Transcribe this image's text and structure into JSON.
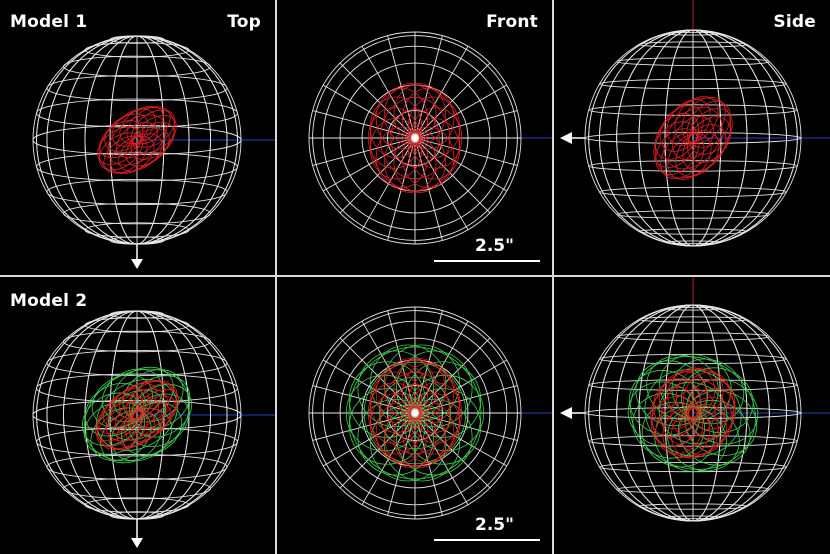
{
  "rows": [
    {
      "label": "Model 1",
      "panels": [
        {
          "view": "Top",
          "view_label": "Top",
          "scale_label": "",
          "arrow": "down",
          "shells": [
            {
              "color": "red",
              "tilt": -35,
              "rx": 0.16,
              "ry": 0.1
            }
          ]
        },
        {
          "view": "Front",
          "view_label": "Front",
          "scale_label": "2.5\"",
          "arrow": "",
          "shells": [
            {
              "color": "red",
              "tilt": 0,
              "rx": 0.17,
              "ry": 0.2
            }
          ]
        },
        {
          "view": "Side",
          "view_label": "Side",
          "scale_label": "",
          "arrow": "left",
          "shells": [
            {
              "color": "red",
              "tilt": 40,
              "rx": 0.12,
              "ry": 0.17
            }
          ]
        }
      ]
    },
    {
      "label": "Model 2",
      "panels": [
        {
          "view": "Top",
          "view_label": "",
          "scale_label": "",
          "arrow": "down",
          "shells": [
            {
              "color": "green",
              "tilt": -30,
              "rx": 0.21,
              "ry": 0.16
            },
            {
              "color": "red",
              "tilt": -35,
              "rx": 0.17,
              "ry": 0.1
            }
          ]
        },
        {
          "view": "Front",
          "view_label": "",
          "scale_label": "2.5\"",
          "arrow": "",
          "shells": [
            {
              "color": "green",
              "tilt": 0,
              "rx": 0.25,
              "ry": 0.25
            },
            {
              "color": "red",
              "tilt": 0,
              "rx": 0.17,
              "ry": 0.2
            }
          ]
        },
        {
          "view": "Side",
          "view_label": "",
          "scale_label": "",
          "arrow": "left",
          "shells": [
            {
              "color": "green",
              "tilt": 20,
              "rx": 0.24,
              "ry": 0.21
            },
            {
              "color": "red",
              "tilt": 30,
              "rx": 0.15,
              "ry": 0.17
            }
          ]
        }
      ]
    }
  ],
  "colors": {
    "background": "#000000",
    "sphere": "#ffffff",
    "divider": "#d9d9d9",
    "red": "#e02020",
    "green": "#3fcf50",
    "axis": "#2a3fbf",
    "axis_red": "#b02020"
  }
}
